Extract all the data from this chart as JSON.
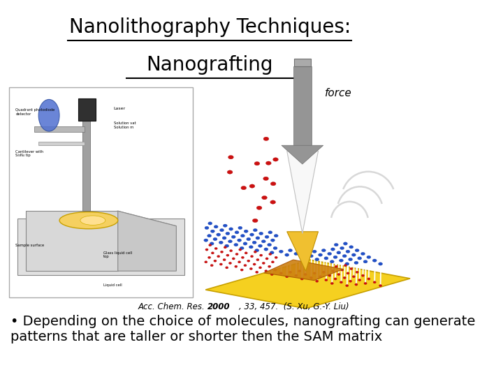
{
  "title_line1": "Nanolithography Techniques:",
  "title_line2": "Nanografting",
  "title_fontsize": 20,
  "title_color": "#000000",
  "background_color": "#ffffff",
  "force_label": "force",
  "citation_italic": "Acc. Chem. Res. ",
  "citation_bold": "2000",
  "citation_rest": ", 33, 457.  (S. Xu, G.-Y. Liu)",
  "bullet_text": "• Depending on the choice of molecules, nanografting can generate\npatterns that are taller or shorter then the SAM matrix",
  "bullet_fontsize": 14
}
